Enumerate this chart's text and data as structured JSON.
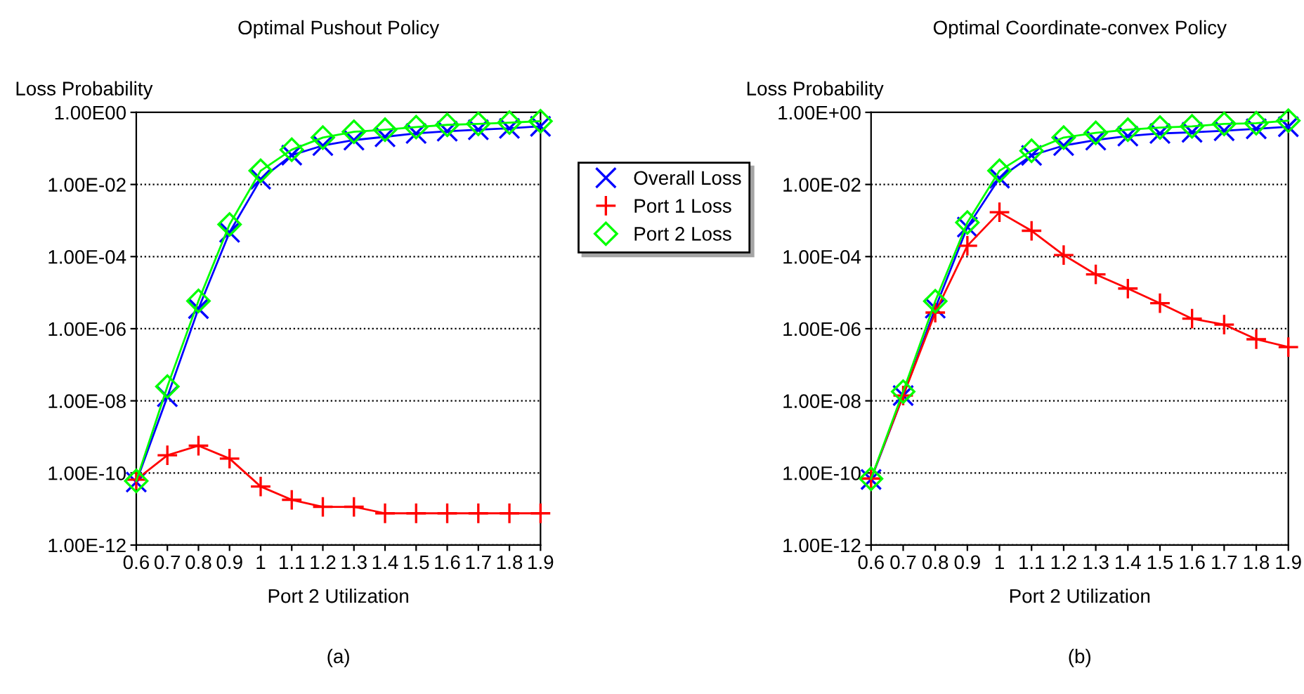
{
  "chart_data": [
    {
      "type": "line",
      "title": "Optimal Pushout Policy",
      "xlabel": "Port 2 Utilization",
      "ylabel": "Loss Probability",
      "log": "y",
      "grid": "y",
      "legend": "right",
      "annotations": [
        "(a)"
      ],
      "x": [
        0.6,
        0.7,
        0.8,
        0.9,
        1,
        1.1,
        1.2,
        1.3,
        1.4,
        1.5,
        1.6,
        1.7,
        1.8,
        1.9
      ],
      "xlim": [
        0.6,
        1.9
      ],
      "xticks": [
        0.6,
        0.7,
        0.8,
        0.9,
        1,
        1.1,
        1.2,
        1.3,
        1.4,
        1.5,
        1.6,
        1.7,
        1.8,
        1.9
      ],
      "ylim": [
        1e-12,
        1
      ],
      "yticks": [
        {
          "value": 1e-12,
          "label": "1.00E-12"
        },
        {
          "value": 1e-10,
          "label": "1.00E-10"
        },
        {
          "value": 1e-08,
          "label": "1.00E-08"
        },
        {
          "value": 1e-06,
          "label": "1.00E-06"
        },
        {
          "value": 0.0001,
          "label": "1.00E-04"
        },
        {
          "value": 0.01,
          "label": "1.00E-02"
        },
        {
          "value": 1,
          "label": "1.00E00"
        }
      ],
      "series": [
        {
          "name": "Overall Loss",
          "color": "#0000ff",
          "marker": "x",
          "values": [
            5.6e-11,
            1.3e-08,
            3.6e-06,
            0.00047,
            0.014,
            0.065,
            0.12,
            0.17,
            0.21,
            0.26,
            0.3,
            0.33,
            0.36,
            0.41
          ]
        },
        {
          "name": "Port 1 Loss",
          "color": "#ff0000",
          "marker": "cross",
          "values": [
            6.5e-11,
            3.1e-10,
            5.7e-10,
            2.5e-10,
            4.2e-11,
            1.8e-11,
            1.15e-11,
            1.15e-11,
            7.6e-12,
            7.6e-12,
            7.6e-12,
            7.6e-12,
            7.6e-12,
            7.6e-12
          ]
        },
        {
          "name": "Port 2 Loss",
          "color": "#00ff00",
          "marker": "diamond",
          "values": [
            6e-11,
            2.5e-08,
            5.9e-06,
            0.00078,
            0.024,
            0.092,
            0.2,
            0.29,
            0.33,
            0.39,
            0.45,
            0.48,
            0.52,
            0.57
          ]
        }
      ]
    },
    {
      "type": "line",
      "title": "Optimal Coordinate-convex Policy",
      "xlabel": "Port 2 Utilization",
      "ylabel": "Loss Probability",
      "log": "y",
      "grid": "y",
      "annotations": [
        "(b)"
      ],
      "x": [
        0.6,
        0.7,
        0.8,
        0.9,
        1,
        1.1,
        1.2,
        1.3,
        1.4,
        1.5,
        1.6,
        1.7,
        1.8,
        1.9
      ],
      "xlim": [
        0.6,
        1.9
      ],
      "xticks": [
        0.6,
        0.7,
        0.8,
        0.9,
        1,
        1.1,
        1.2,
        1.3,
        1.4,
        1.5,
        1.6,
        1.7,
        1.8,
        1.9
      ],
      "ylim": [
        1e-12,
        1
      ],
      "yticks": [
        {
          "value": 1e-12,
          "label": "1.00E-12"
        },
        {
          "value": 1e-10,
          "label": "1.00E-10"
        },
        {
          "value": 1e-08,
          "label": "1.00E-08"
        },
        {
          "value": 1e-06,
          "label": "1.00E-06"
        },
        {
          "value": 0.0001,
          "label": "1.00E-04"
        },
        {
          "value": 0.01,
          "label": "1.00E-02"
        },
        {
          "value": 1,
          "label": "1.00E+00"
        }
      ],
      "series": [
        {
          "color": "#0000ff",
          "marker": "x",
          "values": [
            6.6e-11,
            1.4e-08,
            3.7e-06,
            0.00066,
            0.015,
            0.064,
            0.12,
            0.17,
            0.22,
            0.26,
            0.28,
            0.31,
            0.35,
            0.4
          ]
        },
        {
          "color": "#ff0000",
          "marker": "cross",
          "values": [
            7e-11,
            1.4e-08,
            2.8e-06,
            0.0002,
            0.0017,
            0.00052,
            0.00011,
            3.2e-05,
            1.3e-05,
            5.1e-06,
            1.9e-06,
            1.3e-06,
            5.1e-07,
            3.1e-07
          ]
        },
        {
          "color": "#00ff00",
          "marker": "diamond",
          "values": [
            6.9e-11,
            1.8e-08,
            5.8e-06,
            0.00088,
            0.024,
            0.086,
            0.2,
            0.27,
            0.33,
            0.38,
            0.41,
            0.48,
            0.5,
            0.59
          ]
        }
      ]
    }
  ]
}
